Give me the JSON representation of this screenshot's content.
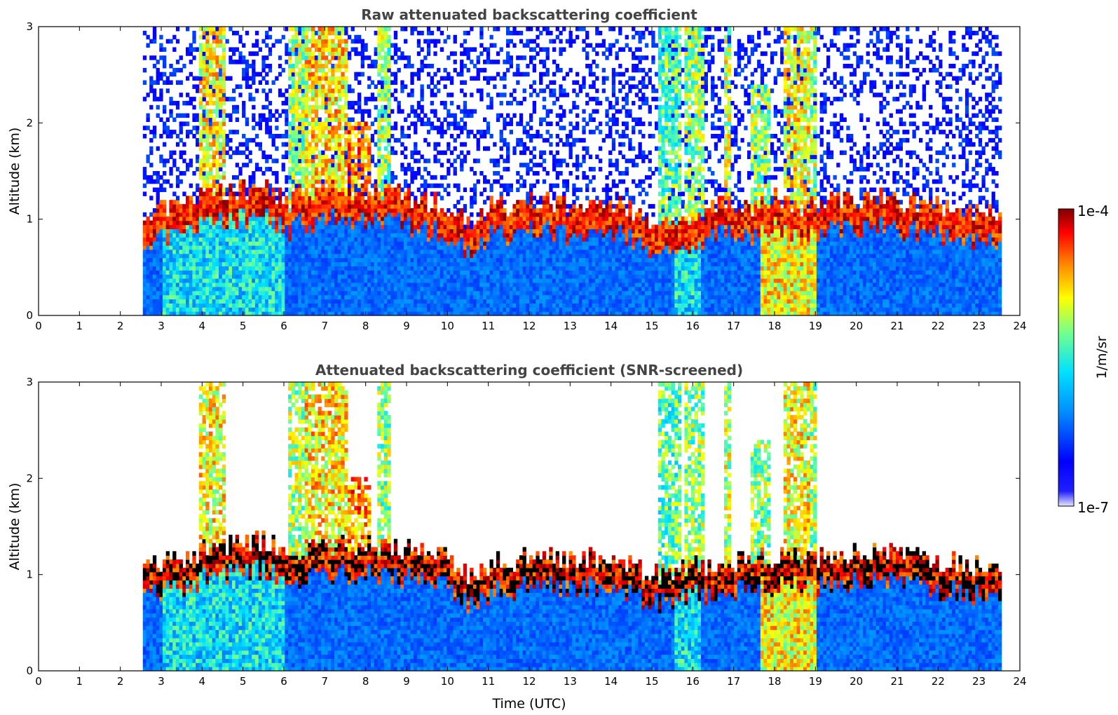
{
  "chart_data": [
    {
      "type": "heatmap",
      "title": "Raw attenuated backscattering coefficient",
      "xlabel": "",
      "ylabel": "Altitude (km)",
      "xlim": [
        0,
        24
      ],
      "ylim": [
        0,
        3
      ],
      "xticks": [
        "0",
        "1",
        "2",
        "3",
        "4",
        "5",
        "6",
        "7",
        "8",
        "9",
        "10",
        "11",
        "12",
        "13",
        "14",
        "15",
        "16",
        "17",
        "18",
        "19",
        "20",
        "21",
        "22",
        "23",
        "24"
      ],
      "yticks": [
        "0",
        "1",
        "2",
        "3"
      ],
      "data_time_range": [
        2.55,
        23.55
      ],
      "screened": false,
      "boundary_layer_top_km": [
        {
          "t": 2.6,
          "h": 0.9
        },
        {
          "t": 3.5,
          "h": 1.05
        },
        {
          "t": 4.5,
          "h": 1.15
        },
        {
          "t": 5.5,
          "h": 1.2
        },
        {
          "t": 6.0,
          "h": 1.05
        },
        {
          "t": 7.0,
          "h": 1.2
        },
        {
          "t": 8.0,
          "h": 1.15
        },
        {
          "t": 9.0,
          "h": 1.1
        },
        {
          "t": 10.0,
          "h": 1.0
        },
        {
          "t": 10.5,
          "h": 0.85
        },
        {
          "t": 11.0,
          "h": 1.0
        },
        {
          "t": 12.0,
          "h": 1.05
        },
        {
          "t": 13.0,
          "h": 1.0
        },
        {
          "t": 14.0,
          "h": 1.0
        },
        {
          "t": 15.0,
          "h": 0.85
        },
        {
          "t": 16.0,
          "h": 0.95
        },
        {
          "t": 17.0,
          "h": 1.0
        },
        {
          "t": 18.0,
          "h": 1.05
        },
        {
          "t": 19.0,
          "h": 1.0
        },
        {
          "t": 20.0,
          "h": 1.1
        },
        {
          "t": 21.0,
          "h": 1.05
        },
        {
          "t": 22.0,
          "h": 1.0
        },
        {
          "t": 23.0,
          "h": 0.95
        },
        {
          "t": 23.55,
          "h": 0.9
        }
      ]
    },
    {
      "type": "heatmap",
      "title": "Attenuated backscattering coefficient (SNR-screened)",
      "xlabel": "Time (UTC)",
      "ylabel": "Altitude (km)",
      "xlim": [
        0,
        24
      ],
      "ylim": [
        0,
        3
      ],
      "xticks": [
        "0",
        "1",
        "2",
        "3",
        "4",
        "5",
        "6",
        "7",
        "8",
        "9",
        "10",
        "11",
        "12",
        "13",
        "14",
        "15",
        "16",
        "17",
        "18",
        "19",
        "20",
        "21",
        "22",
        "23",
        "24"
      ],
      "yticks": [
        "0",
        "1",
        "2",
        "3"
      ],
      "data_time_range": [
        2.55,
        23.55
      ],
      "screened": true
    }
  ],
  "colorbar": {
    "min_label": "1e-7",
    "max_label": "1e-4",
    "label": "1/m/sr",
    "colormap": "jet",
    "jet_stops": [
      "#ffffff",
      "#0000ff",
      "#00a0ff",
      "#00ffff",
      "#80ff80",
      "#ffff00",
      "#ff8000",
      "#ff0000",
      "#800000"
    ]
  },
  "colors": {
    "axes": "#000000",
    "title_gray": "#444444",
    "background": "#ffffff"
  }
}
